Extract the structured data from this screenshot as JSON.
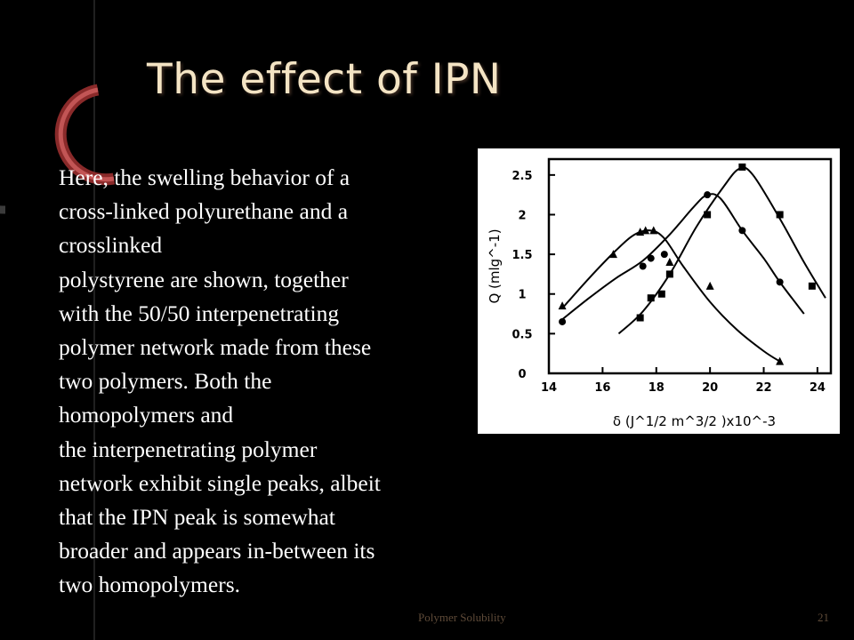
{
  "slide": {
    "title": "The effect of IPN",
    "body_lines": [
      "Here, the swelling behavior of a",
      "cross-linked polyurethane and a",
      "crosslinked",
      "polystyrene are shown, together",
      "with the 50/50 interpenetrating",
      "polymer network made from these",
      "two polymers. Both the",
      "homopolymers and",
      "the interpenetrating polymer",
      "network exhibit single peaks, albeit",
      "that the IPN peak is somewhat",
      "broader and appears in-between its",
      "two homopolymers."
    ],
    "footer_text": "Polymer Solubility",
    "page_number": "21"
  },
  "colors": {
    "background": "#000000",
    "title": "#f4e4c4",
    "body_text": "#ffffff",
    "footer": "#5e4a38",
    "decor_ring": "#b33a3a"
  },
  "chart_data": {
    "type": "scatter",
    "xlabel": "δ (J^1/2 m^3/2 )x10^-3",
    "ylabel": "Q (mlg^-1)",
    "x_ticks": [
      "14",
      "16",
      "18",
      "20",
      "22",
      "24"
    ],
    "y_ticks": [
      "0",
      "0.5",
      "1",
      "1.5",
      "2",
      "2.5"
    ],
    "xlim": [
      14,
      24.5
    ],
    "ylim": [
      0,
      2.7
    ],
    "series": [
      {
        "marker": "triangle",
        "points": [
          [
            14.5,
            0.85
          ],
          [
            16.4,
            1.5
          ],
          [
            17.4,
            1.78
          ],
          [
            17.6,
            1.8
          ],
          [
            17.9,
            1.8
          ],
          [
            18.5,
            1.4
          ],
          [
            20.0,
            1.1
          ],
          [
            22.6,
            0.15
          ]
        ],
        "curve": [
          [
            14.5,
            0.82
          ],
          [
            15.5,
            1.2
          ],
          [
            16.5,
            1.55
          ],
          [
            17.2,
            1.75
          ],
          [
            17.8,
            1.8
          ],
          [
            18.3,
            1.7
          ],
          [
            19.0,
            1.35
          ],
          [
            20.0,
            0.9
          ],
          [
            21.0,
            0.55
          ],
          [
            22.0,
            0.28
          ],
          [
            22.6,
            0.15
          ]
        ]
      },
      {
        "marker": "circle",
        "points": [
          [
            14.5,
            0.65
          ],
          [
            17.5,
            1.35
          ],
          [
            17.8,
            1.45
          ],
          [
            18.3,
            1.5
          ],
          [
            19.9,
            2.25
          ],
          [
            21.2,
            1.8
          ],
          [
            22.6,
            1.15
          ]
        ],
        "curve": [
          [
            14.5,
            0.68
          ],
          [
            15.5,
            0.95
          ],
          [
            16.5,
            1.2
          ],
          [
            17.5,
            1.42
          ],
          [
            18.5,
            1.75
          ],
          [
            19.4,
            2.1
          ],
          [
            19.9,
            2.25
          ],
          [
            20.4,
            2.2
          ],
          [
            21.2,
            1.8
          ],
          [
            22.0,
            1.45
          ],
          [
            22.6,
            1.15
          ],
          [
            23.5,
            0.75
          ]
        ]
      },
      {
        "marker": "square",
        "points": [
          [
            17.4,
            0.7
          ],
          [
            17.8,
            0.95
          ],
          [
            18.2,
            1.0
          ],
          [
            18.5,
            1.25
          ],
          [
            19.9,
            2.0
          ],
          [
            21.2,
            2.6
          ],
          [
            22.6,
            2.0
          ],
          [
            23.8,
            1.1
          ]
        ],
        "curve": [
          [
            16.6,
            0.5
          ],
          [
            17.5,
            0.78
          ],
          [
            18.5,
            1.25
          ],
          [
            19.5,
            1.85
          ],
          [
            20.5,
            2.35
          ],
          [
            21.1,
            2.58
          ],
          [
            21.6,
            2.5
          ],
          [
            22.6,
            1.95
          ],
          [
            23.5,
            1.4
          ],
          [
            24.3,
            0.95
          ]
        ]
      }
    ]
  }
}
